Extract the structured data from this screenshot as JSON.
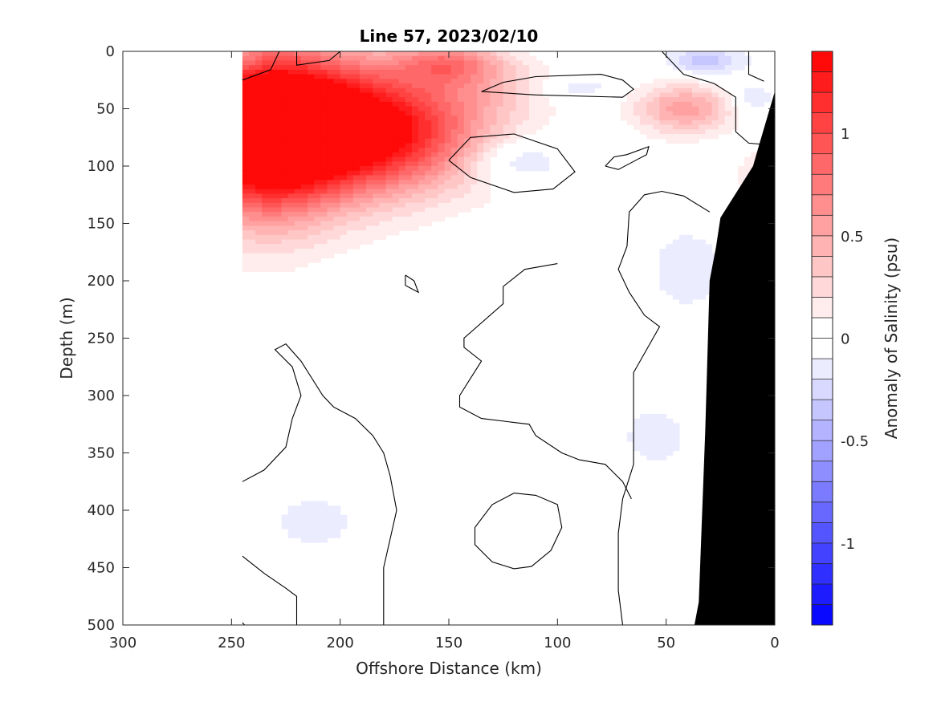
{
  "chart_data": {
    "type": "heatmap",
    "title": "Line 57, 2023/02/10",
    "xlabel": "Offshore Distance (km)",
    "ylabel": "Depth (m)",
    "colorbar_label": "Anomaly of Salinity (psu)",
    "xlim": [
      300,
      0
    ],
    "ylim": [
      500,
      0
    ],
    "x_reversed": true,
    "y_reversed": true,
    "x_ticks": [
      300,
      250,
      200,
      150,
      100,
      50,
      0
    ],
    "y_ticks": [
      0,
      50,
      100,
      150,
      200,
      250,
      300,
      350,
      400,
      450,
      500
    ],
    "colorbar_range": [
      -1.4,
      1.4
    ],
    "colorbar_step": 0.1,
    "colorbar_ticks": [
      -1,
      -0.5,
      0,
      0.5,
      1
    ],
    "colormap": {
      "negative": "#0000ff",
      "zero": "#ffffff",
      "positive": "#ff0000"
    },
    "data_x_range": [
      245,
      0
    ],
    "anomaly_features": [
      {
        "x": 218,
        "depth": 65,
        "anomaly": 1.4,
        "rx": 62,
        "ry": 60
      },
      {
        "x": 235,
        "depth": 75,
        "anomaly": 1.0,
        "rx": 34,
        "ry": 75
      },
      {
        "x": 175,
        "depth": 72,
        "anomaly": 0.6,
        "rx": 45,
        "ry": 45
      },
      {
        "x": 150,
        "depth": 10,
        "anomaly": 0.55,
        "rx": 24,
        "ry": 17
      },
      {
        "x": 135,
        "depth": 30,
        "anomaly": 0.2,
        "rx": 30,
        "ry": 25
      },
      {
        "x": 42,
        "depth": 50,
        "anomaly": 0.55,
        "rx": 22,
        "ry": 22
      },
      {
        "x": 8,
        "depth": 110,
        "anomaly": 0.2,
        "rx": 10,
        "ry": 25
      },
      {
        "x": 120,
        "depth": 95,
        "anomaly": -0.3,
        "rx": 22,
        "ry": 20
      },
      {
        "x": 32,
        "depth": 8,
        "anomaly": -0.35,
        "rx": 18,
        "ry": 13
      },
      {
        "x": 90,
        "depth": 32,
        "anomaly": -0.18,
        "rx": 16,
        "ry": 10
      },
      {
        "x": 10,
        "depth": 40,
        "anomaly": -0.2,
        "rx": 10,
        "ry": 14
      },
      {
        "x": 242,
        "depth": 8,
        "anomaly": -0.12,
        "rx": 6,
        "ry": 10
      },
      {
        "x": 40,
        "depth": 190,
        "anomaly": -0.15,
        "rx": 22,
        "ry": 45
      },
      {
        "x": 55,
        "depth": 335,
        "anomaly": -0.2,
        "rx": 14,
        "ry": 24
      },
      {
        "x": 212,
        "depth": 410,
        "anomaly": -0.18,
        "rx": 20,
        "ry": 22
      }
    ],
    "zero_contours": [
      [
        [
          245,
          25
        ],
        [
          232,
          16
        ],
        [
          228,
          0
        ]
      ],
      [
        [
          200,
          0
        ],
        [
          205,
          8
        ],
        [
          220,
          12
        ],
        [
          220,
          0
        ]
      ],
      [
        [
          135,
          35
        ],
        [
          110,
          38
        ],
        [
          70,
          40
        ],
        [
          65,
          33
        ],
        [
          70,
          25
        ],
        [
          80,
          20
        ],
        [
          110,
          22
        ],
        [
          125,
          27
        ],
        [
          135,
          35
        ]
      ],
      [
        [
          150,
          95
        ],
        [
          140,
          110
        ],
        [
          120,
          123
        ],
        [
          102,
          120
        ],
        [
          92,
          105
        ],
        [
          100,
          85
        ],
        [
          120,
          72
        ],
        [
          140,
          75
        ],
        [
          150,
          95
        ]
      ],
      [
        [
          78,
          100
        ],
        [
          74,
          92
        ],
        [
          68,
          90
        ],
        [
          58,
          83
        ],
        [
          59,
          90
        ],
        [
          64,
          95
        ],
        [
          72,
          103
        ],
        [
          78,
          100
        ]
      ],
      [
        [
          52,
          0
        ],
        [
          42,
          20
        ],
        [
          28,
          28
        ],
        [
          18,
          40
        ],
        [
          18,
          70
        ],
        [
          12,
          80
        ],
        [
          0,
          82
        ]
      ],
      [
        [
          12,
          0
        ],
        [
          12,
          20
        ],
        [
          5,
          26
        ]
      ],
      [
        [
          30,
          140
        ],
        [
          42,
          126
        ],
        [
          52,
          122
        ],
        [
          60,
          125
        ],
        [
          67,
          140
        ],
        [
          68,
          170
        ],
        [
          72,
          190
        ],
        [
          67,
          210
        ],
        [
          60,
          230
        ],
        [
          53,
          240
        ],
        [
          56,
          250
        ],
        [
          65,
          280
        ],
        [
          65,
          340
        ],
        [
          65,
          360
        ],
        [
          70,
          390
        ],
        [
          72,
          420
        ],
        [
          72,
          470
        ],
        [
          70,
          500
        ]
      ],
      [
        [
          0,
          120
        ],
        [
          10,
          125
        ],
        [
          20,
          140
        ]
      ],
      [
        [
          100,
          185
        ],
        [
          115,
          190
        ],
        [
          125,
          205
        ],
        [
          125,
          220
        ],
        [
          143,
          250
        ],
        [
          143,
          258
        ],
        [
          135,
          270
        ],
        [
          145,
          300
        ],
        [
          145,
          310
        ],
        [
          135,
          320
        ],
        [
          113,
          325
        ],
        [
          110,
          335
        ],
        [
          98,
          350
        ],
        [
          90,
          356
        ],
        [
          78,
          360
        ],
        [
          70,
          375
        ],
        [
          66,
          390
        ]
      ],
      [
        [
          170,
          195
        ],
        [
          166,
          200
        ],
        [
          164,
          210
        ],
        [
          170,
          204
        ],
        [
          170,
          195
        ]
      ],
      [
        [
          120,
          385
        ],
        [
          110,
          387
        ],
        [
          100,
          395
        ],
        [
          98,
          415
        ],
        [
          103,
          435
        ],
        [
          112,
          449
        ],
        [
          120,
          451
        ],
        [
          130,
          445
        ],
        [
          138,
          430
        ],
        [
          138,
          415
        ],
        [
          130,
          395
        ],
        [
          120,
          385
        ]
      ],
      [
        [
          245,
          375
        ],
        [
          235,
          365
        ],
        [
          225,
          345
        ],
        [
          222,
          320
        ],
        [
          218,
          300
        ],
        [
          222,
          275
        ],
        [
          230,
          260
        ],
        [
          225,
          255
        ],
        [
          218,
          270
        ],
        [
          208,
          300
        ],
        [
          203,
          310
        ],
        [
          193,
          320
        ],
        [
          185,
          335
        ],
        [
          180,
          350
        ],
        [
          177,
          370
        ],
        [
          174,
          400
        ],
        [
          180,
          450
        ],
        [
          180,
          500
        ]
      ],
      [
        [
          245,
          440
        ],
        [
          235,
          455
        ],
        [
          225,
          468
        ],
        [
          220,
          475
        ],
        [
          220,
          500
        ]
      ],
      [
        [
          244,
          500
        ],
        [
          245,
          498
        ]
      ]
    ],
    "bathymetry": [
      [
        0,
        35
      ],
      [
        7,
        80
      ],
      [
        10,
        100
      ],
      [
        25,
        145
      ],
      [
        27,
        170
      ],
      [
        30,
        200
      ],
      [
        32,
        330
      ],
      [
        35,
        480
      ],
      [
        37,
        500
      ]
    ]
  }
}
